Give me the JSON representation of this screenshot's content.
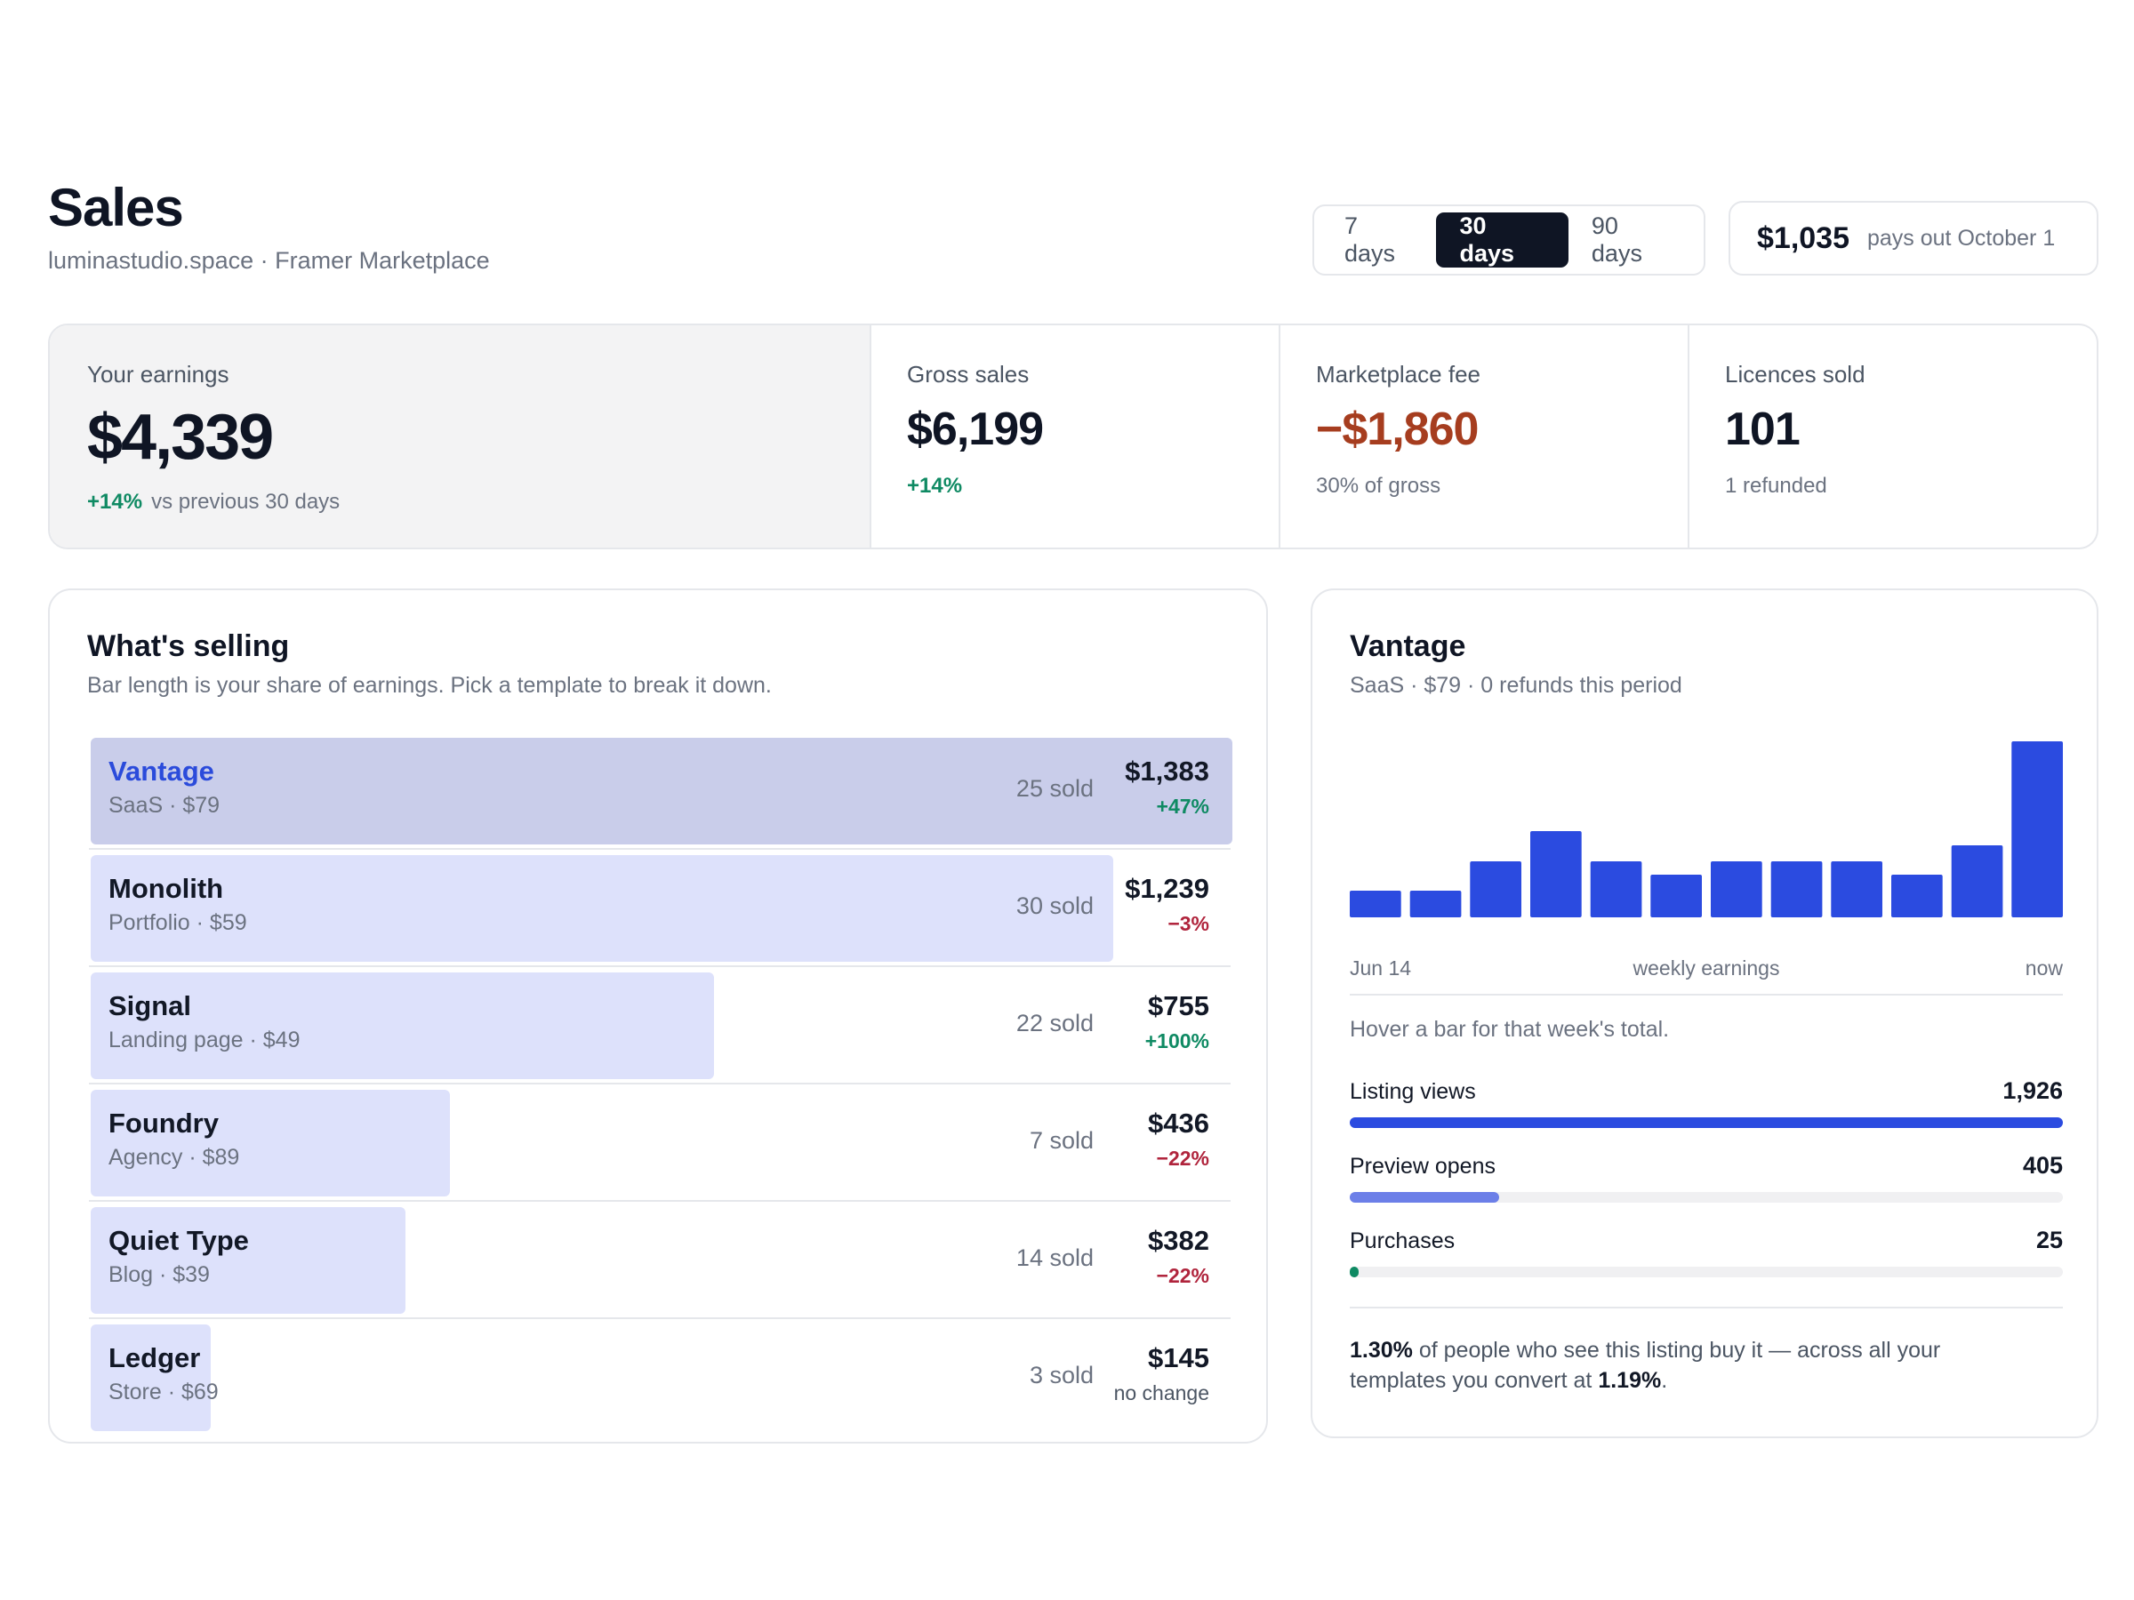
{
  "header": {
    "title": "Sales",
    "subtitle": "luminastudio.space · Framer Marketplace"
  },
  "range": {
    "options": [
      "7 days",
      "30 days",
      "90 days"
    ],
    "selected": "30 days"
  },
  "payout": {
    "amount": "$1,035",
    "note": "pays out October 1"
  },
  "stats": {
    "earnings": {
      "label": "Your earnings",
      "value": "$4,339",
      "change": "+14%",
      "note": "vs previous 30 days"
    },
    "gross": {
      "label": "Gross sales",
      "value": "$6,199",
      "change": "+14%"
    },
    "fee": {
      "label": "Marketplace fee",
      "value": "−$1,860",
      "note": "30% of gross"
    },
    "licences": {
      "label": "Licences sold",
      "value": "101",
      "note": "1 refunded"
    }
  },
  "selling": {
    "title": "What's selling",
    "subtitle": "Bar length is your share of earnings. Pick a template to break it down.",
    "rows": [
      {
        "name": "Vantage",
        "meta": "SaaS · $79",
        "sold": "25 sold",
        "amount": "$1,383",
        "change": "+47%",
        "trend": "up",
        "share": 1.0,
        "selected": true
      },
      {
        "name": "Monolith",
        "meta": "Portfolio · $59",
        "sold": "30 sold",
        "amount": "$1,239",
        "change": "−3%",
        "trend": "down",
        "share": 0.896,
        "selected": false
      },
      {
        "name": "Signal",
        "meta": "Landing page · $49",
        "sold": "22 sold",
        "amount": "$755",
        "change": "+100%",
        "trend": "up",
        "share": 0.546,
        "selected": false
      },
      {
        "name": "Foundry",
        "meta": "Agency · $89",
        "sold": "7 sold",
        "amount": "$436",
        "change": "−22%",
        "trend": "down",
        "share": 0.315,
        "selected": false
      },
      {
        "name": "Quiet Type",
        "meta": "Blog · $39",
        "sold": "14 sold",
        "amount": "$382",
        "change": "−22%",
        "trend": "down",
        "share": 0.276,
        "selected": false
      },
      {
        "name": "Ledger",
        "meta": "Store · $69",
        "sold": "3 sold",
        "amount": "$145",
        "change": "no change",
        "trend": "flat",
        "share": 0.105,
        "selected": false
      }
    ]
  },
  "detail": {
    "title": "Vantage",
    "subtitle": "SaaS · $79 · 0 refunds this period",
    "axis_start": "Jun 14",
    "axis_mid": "weekly earnings",
    "axis_end": "now",
    "hint": "Hover a bar for that week's total.",
    "funnel": [
      {
        "label": "Listing views",
        "value": "1,926",
        "fraction": 1.0,
        "color": "#2b4be0"
      },
      {
        "label": "Preview opens",
        "value": "405",
        "fraction": 0.21,
        "color": "#6c7fe8"
      },
      {
        "label": "Purchases",
        "value": "25",
        "fraction": 0.013,
        "color": "#0f8a63"
      }
    ],
    "conversion": {
      "rate": "1.30%",
      "text_a": " of people who see this listing buy it — across all your templates you convert at ",
      "overall": "1.19%",
      "text_b": "."
    }
  },
  "chart_data": {
    "type": "bar",
    "xlabel": "weekly earnings",
    "values": [
      0.15,
      0.15,
      0.32,
      0.49,
      0.32,
      0.24,
      0.32,
      0.32,
      0.32,
      0.24,
      0.41,
      1.0
    ],
    "color": "#2b4be0"
  }
}
